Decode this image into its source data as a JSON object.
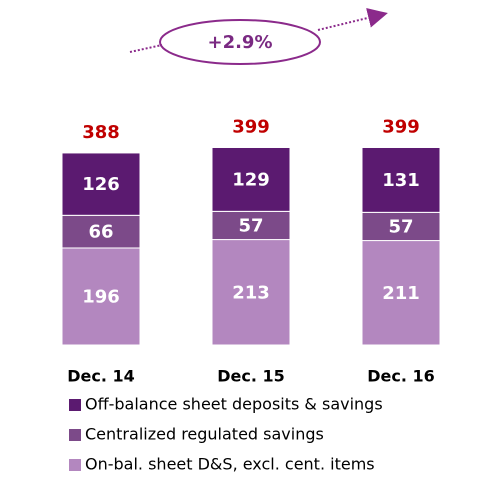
{
  "chart_data": {
    "type": "stacked_bar",
    "categories": [
      "Dec. 14",
      "Dec. 15",
      "Dec. 16"
    ],
    "series": [
      {
        "name": "On-bal. sheet D&S, excl. cent. items",
        "color": "#b387bf",
        "values": [
          196,
          213,
          211
        ]
      },
      {
        "name": "Centralized regulated savings",
        "color": "#7c4a89",
        "values": [
          66,
          57,
          57
        ]
      },
      {
        "name": "Off-balance sheet deposits & savings",
        "color": "#5b1a70",
        "values": [
          126,
          129,
          131
        ]
      }
    ],
    "totals": [
      388,
      399,
      399
    ],
    "annotation": "+2.9%"
  }
}
